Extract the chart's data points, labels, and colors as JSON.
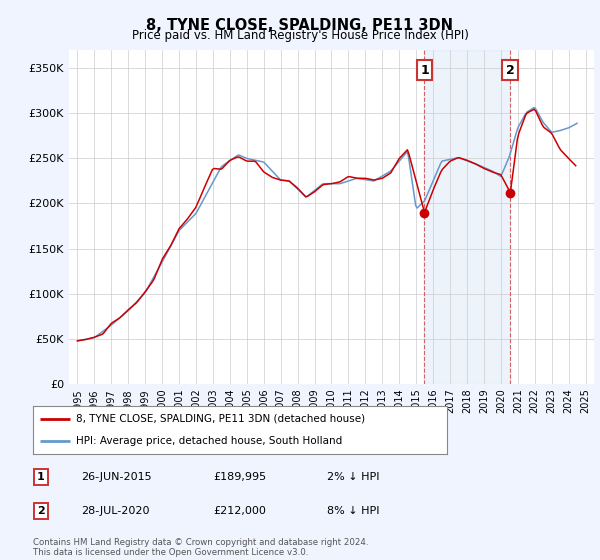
{
  "title": "8, TYNE CLOSE, SPALDING, PE11 3DN",
  "subtitle": "Price paid vs. HM Land Registry's House Price Index (HPI)",
  "legend_line1": "8, TYNE CLOSE, SPALDING, PE11 3DN (detached house)",
  "legend_line2": "HPI: Average price, detached house, South Holland",
  "annotation1_date": "26-JUN-2015",
  "annotation1_price": "£189,995",
  "annotation1_hpi": "2% ↓ HPI",
  "annotation1_year": 2015.49,
  "annotation1_value": 189995,
  "annotation2_date": "28-JUL-2020",
  "annotation2_price": "£212,000",
  "annotation2_hpi": "8% ↓ HPI",
  "annotation2_year": 2020.56,
  "annotation2_value": 212000,
  "footer": "Contains HM Land Registry data © Crown copyright and database right 2024.\nThis data is licensed under the Open Government Licence v3.0.",
  "ylim": [
    0,
    370000
  ],
  "xlim_start": 1994.5,
  "xlim_end": 2025.5,
  "red_color": "#cc0000",
  "blue_color": "#6699cc",
  "yticks": [
    0,
    50000,
    100000,
    150000,
    200000,
    250000,
    300000,
    350000
  ],
  "ytick_labels": [
    "£0",
    "£50K",
    "£100K",
    "£150K",
    "£200K",
    "£250K",
    "£300K",
    "£350K"
  ],
  "xticks": [
    1995,
    1996,
    1997,
    1998,
    1999,
    2000,
    2001,
    2002,
    2003,
    2004,
    2005,
    2006,
    2007,
    2008,
    2009,
    2010,
    2011,
    2012,
    2013,
    2014,
    2015,
    2016,
    2017,
    2018,
    2019,
    2020,
    2021,
    2022,
    2023,
    2024,
    2025
  ]
}
